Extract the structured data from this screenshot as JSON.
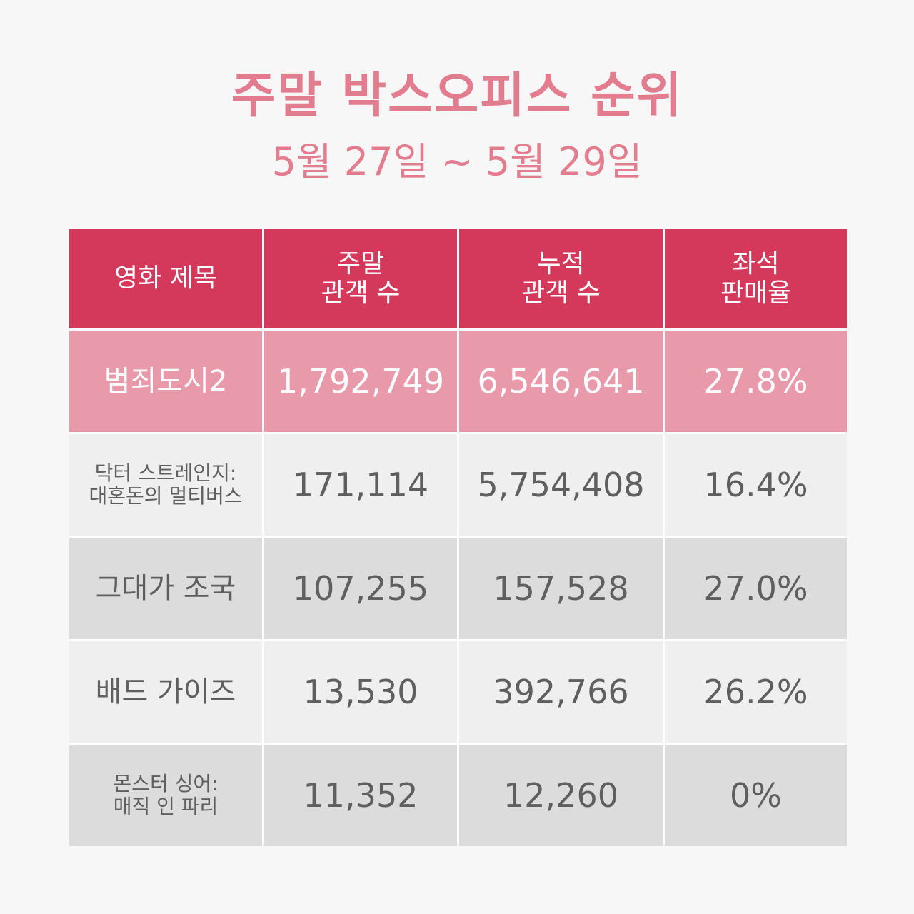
{
  "header": {
    "title": "주말 박스오피스 순위",
    "subtitle": "5월 27일 ~ 5월 29일"
  },
  "table": {
    "headers": [
      {
        "lines": [
          "영화 제목"
        ]
      },
      {
        "lines": [
          "주말",
          "관객 수"
        ]
      },
      {
        "lines": [
          "누적",
          "관객 수"
        ]
      },
      {
        "lines": [
          "좌석",
          "판매율"
        ]
      }
    ],
    "rows": [
      {
        "title_lines": [
          "범죄도시2"
        ],
        "weekend": "1,792,749",
        "cumulative": "6,546,641",
        "seat_rate": "27.8%"
      },
      {
        "title_lines": [
          "닥터 스트레인지:",
          "대혼돈의 멀티버스"
        ],
        "weekend": "171,114",
        "cumulative": "5,754,408",
        "seat_rate": "16.4%"
      },
      {
        "title_lines": [
          "그대가 조국"
        ],
        "weekend": "107,255",
        "cumulative": "157,528",
        "seat_rate": "27.0%"
      },
      {
        "title_lines": [
          "배드 가이즈"
        ],
        "weekend": "13,530",
        "cumulative": "392,766",
        "seat_rate": "26.2%"
      },
      {
        "title_lines": [
          "몬스터 싱어:",
          "매직 인 파리"
        ],
        "weekend": "11,352",
        "cumulative": "12,260",
        "seat_rate": "0%"
      }
    ]
  },
  "colors": {
    "title": "#e27d8f",
    "header_bg": "#d4395c",
    "highlight_row_bg": "#e99aaa",
    "light_row_bg": "#efefef",
    "dark_row_bg": "#dcdcdc",
    "text": "#5f5f5f"
  }
}
